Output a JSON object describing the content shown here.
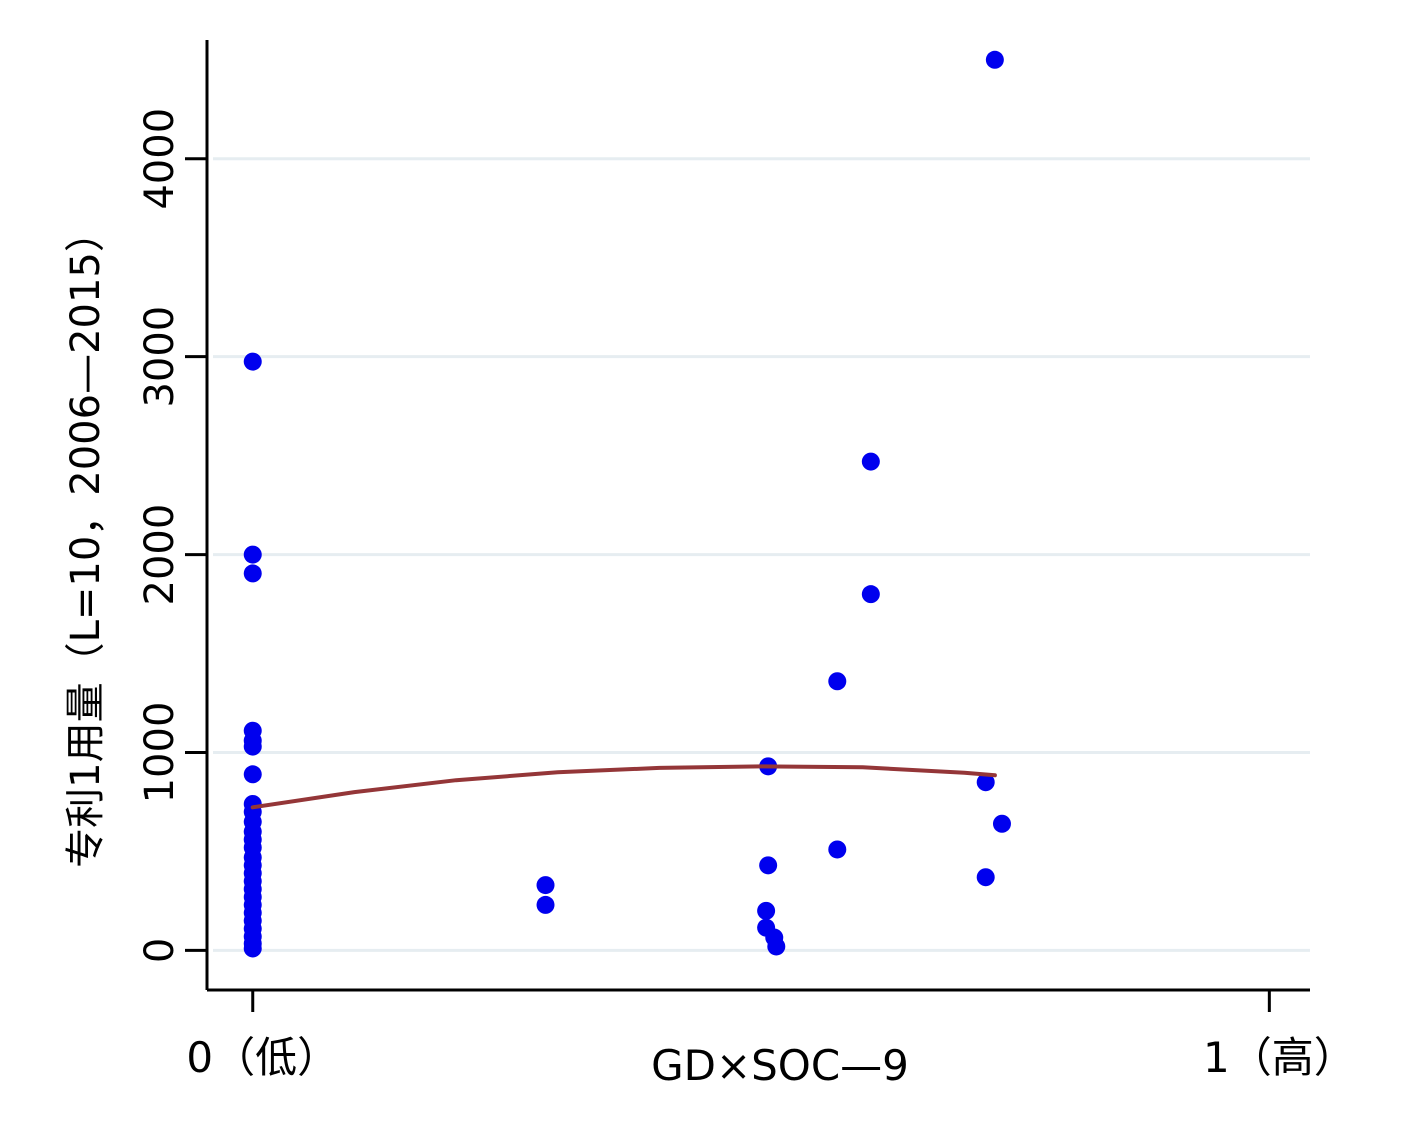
{
  "chart_data": {
    "type": "scatter",
    "title": "",
    "xlabel": "GD×SOC—9",
    "ylabel": "专利1用量（L=10，2006—2015）",
    "xlim": [
      -0.045,
      1.04
    ],
    "ylim": [
      -200,
      4600
    ],
    "x_ticks": [
      {
        "value": 0,
        "label": "0（低）"
      },
      {
        "value": 1,
        "label": "1（高）"
      }
    ],
    "y_ticks": [
      {
        "value": 0,
        "label": "0"
      },
      {
        "value": 1000,
        "label": "1000"
      },
      {
        "value": 2000,
        "label": "2000"
      },
      {
        "value": 3000,
        "label": "3000"
      },
      {
        "value": 4000,
        "label": "4000"
      }
    ],
    "grid": true,
    "colors": {
      "points": "#0000ee",
      "fit_line": "#943638",
      "grid": "#e6edf1",
      "axis": "#000000"
    },
    "series": [
      {
        "kind": "scatter",
        "points": [
          {
            "x": 0,
            "y": 2975
          },
          {
            "x": 0,
            "y": 2000
          },
          {
            "x": 0,
            "y": 1905
          },
          {
            "x": 0,
            "y": 1110
          },
          {
            "x": 0,
            "y": 1060
          },
          {
            "x": 0,
            "y": 1030
          },
          {
            "x": 0,
            "y": 890
          },
          {
            "x": 0,
            "y": 740
          },
          {
            "x": 0,
            "y": 700
          },
          {
            "x": 0,
            "y": 650
          },
          {
            "x": 0,
            "y": 600
          },
          {
            "x": 0,
            "y": 560
          },
          {
            "x": 0,
            "y": 520
          },
          {
            "x": 0,
            "y": 470
          },
          {
            "x": 0,
            "y": 430
          },
          {
            "x": 0,
            "y": 390
          },
          {
            "x": 0,
            "y": 350
          },
          {
            "x": 0,
            "y": 310
          },
          {
            "x": 0,
            "y": 270
          },
          {
            "x": 0,
            "y": 230
          },
          {
            "x": 0,
            "y": 190
          },
          {
            "x": 0,
            "y": 150
          },
          {
            "x": 0,
            "y": 110
          },
          {
            "x": 0,
            "y": 70
          },
          {
            "x": 0,
            "y": 35
          },
          {
            "x": 0,
            "y": 10
          },
          {
            "x": 0.288,
            "y": 330
          },
          {
            "x": 0.288,
            "y": 230
          },
          {
            "x": 0.507,
            "y": 930
          },
          {
            "x": 0.507,
            "y": 430
          },
          {
            "x": 0.505,
            "y": 200
          },
          {
            "x": 0.505,
            "y": 115
          },
          {
            "x": 0.513,
            "y": 65
          },
          {
            "x": 0.515,
            "y": 20
          },
          {
            "x": 0.575,
            "y": 1360
          },
          {
            "x": 0.575,
            "y": 510
          },
          {
            "x": 0.608,
            "y": 2470
          },
          {
            "x": 0.608,
            "y": 1800
          },
          {
            "x": 0.73,
            "y": 4500
          },
          {
            "x": 0.721,
            "y": 850
          },
          {
            "x": 0.737,
            "y": 640
          },
          {
            "x": 0.721,
            "y": 370
          }
        ]
      },
      {
        "kind": "line",
        "x": [
          0,
          0.1,
          0.2,
          0.3,
          0.4,
          0.5,
          0.6,
          0.7,
          0.73
        ],
        "y": [
          723,
          800,
          860,
          900,
          922,
          930,
          925,
          898,
          885
        ]
      }
    ]
  }
}
